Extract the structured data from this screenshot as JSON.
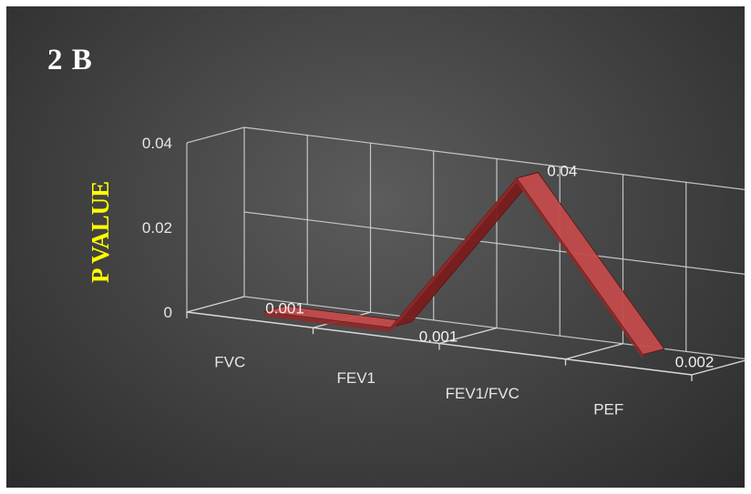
{
  "figure_label": "2 B",
  "chart_data": {
    "type": "line",
    "subtype": "3d-ribbon",
    "categories": [
      "FVC",
      "FEV1",
      "FEV1/FVC",
      "PEF"
    ],
    "series": [
      {
        "values": [
          0.001,
          0.001,
          0.04,
          0.002
        ]
      }
    ],
    "data_labels": [
      "0.001",
      "0.001",
      "0.04",
      "0.002"
    ],
    "ylabel": "P VALUE",
    "yticks": [
      "0",
      "0.02",
      "0.04"
    ],
    "ylim": [
      0,
      0.04
    ],
    "grid": true,
    "legend": "none",
    "colors": {
      "background": "#3d3d3d",
      "ribbon_top": "#c44b4b",
      "ribbon_side": "#7a1c1c",
      "gridline": "#d9d9d9",
      "ylabel": "#ffff00",
      "text": "#e6e6e6"
    }
  }
}
